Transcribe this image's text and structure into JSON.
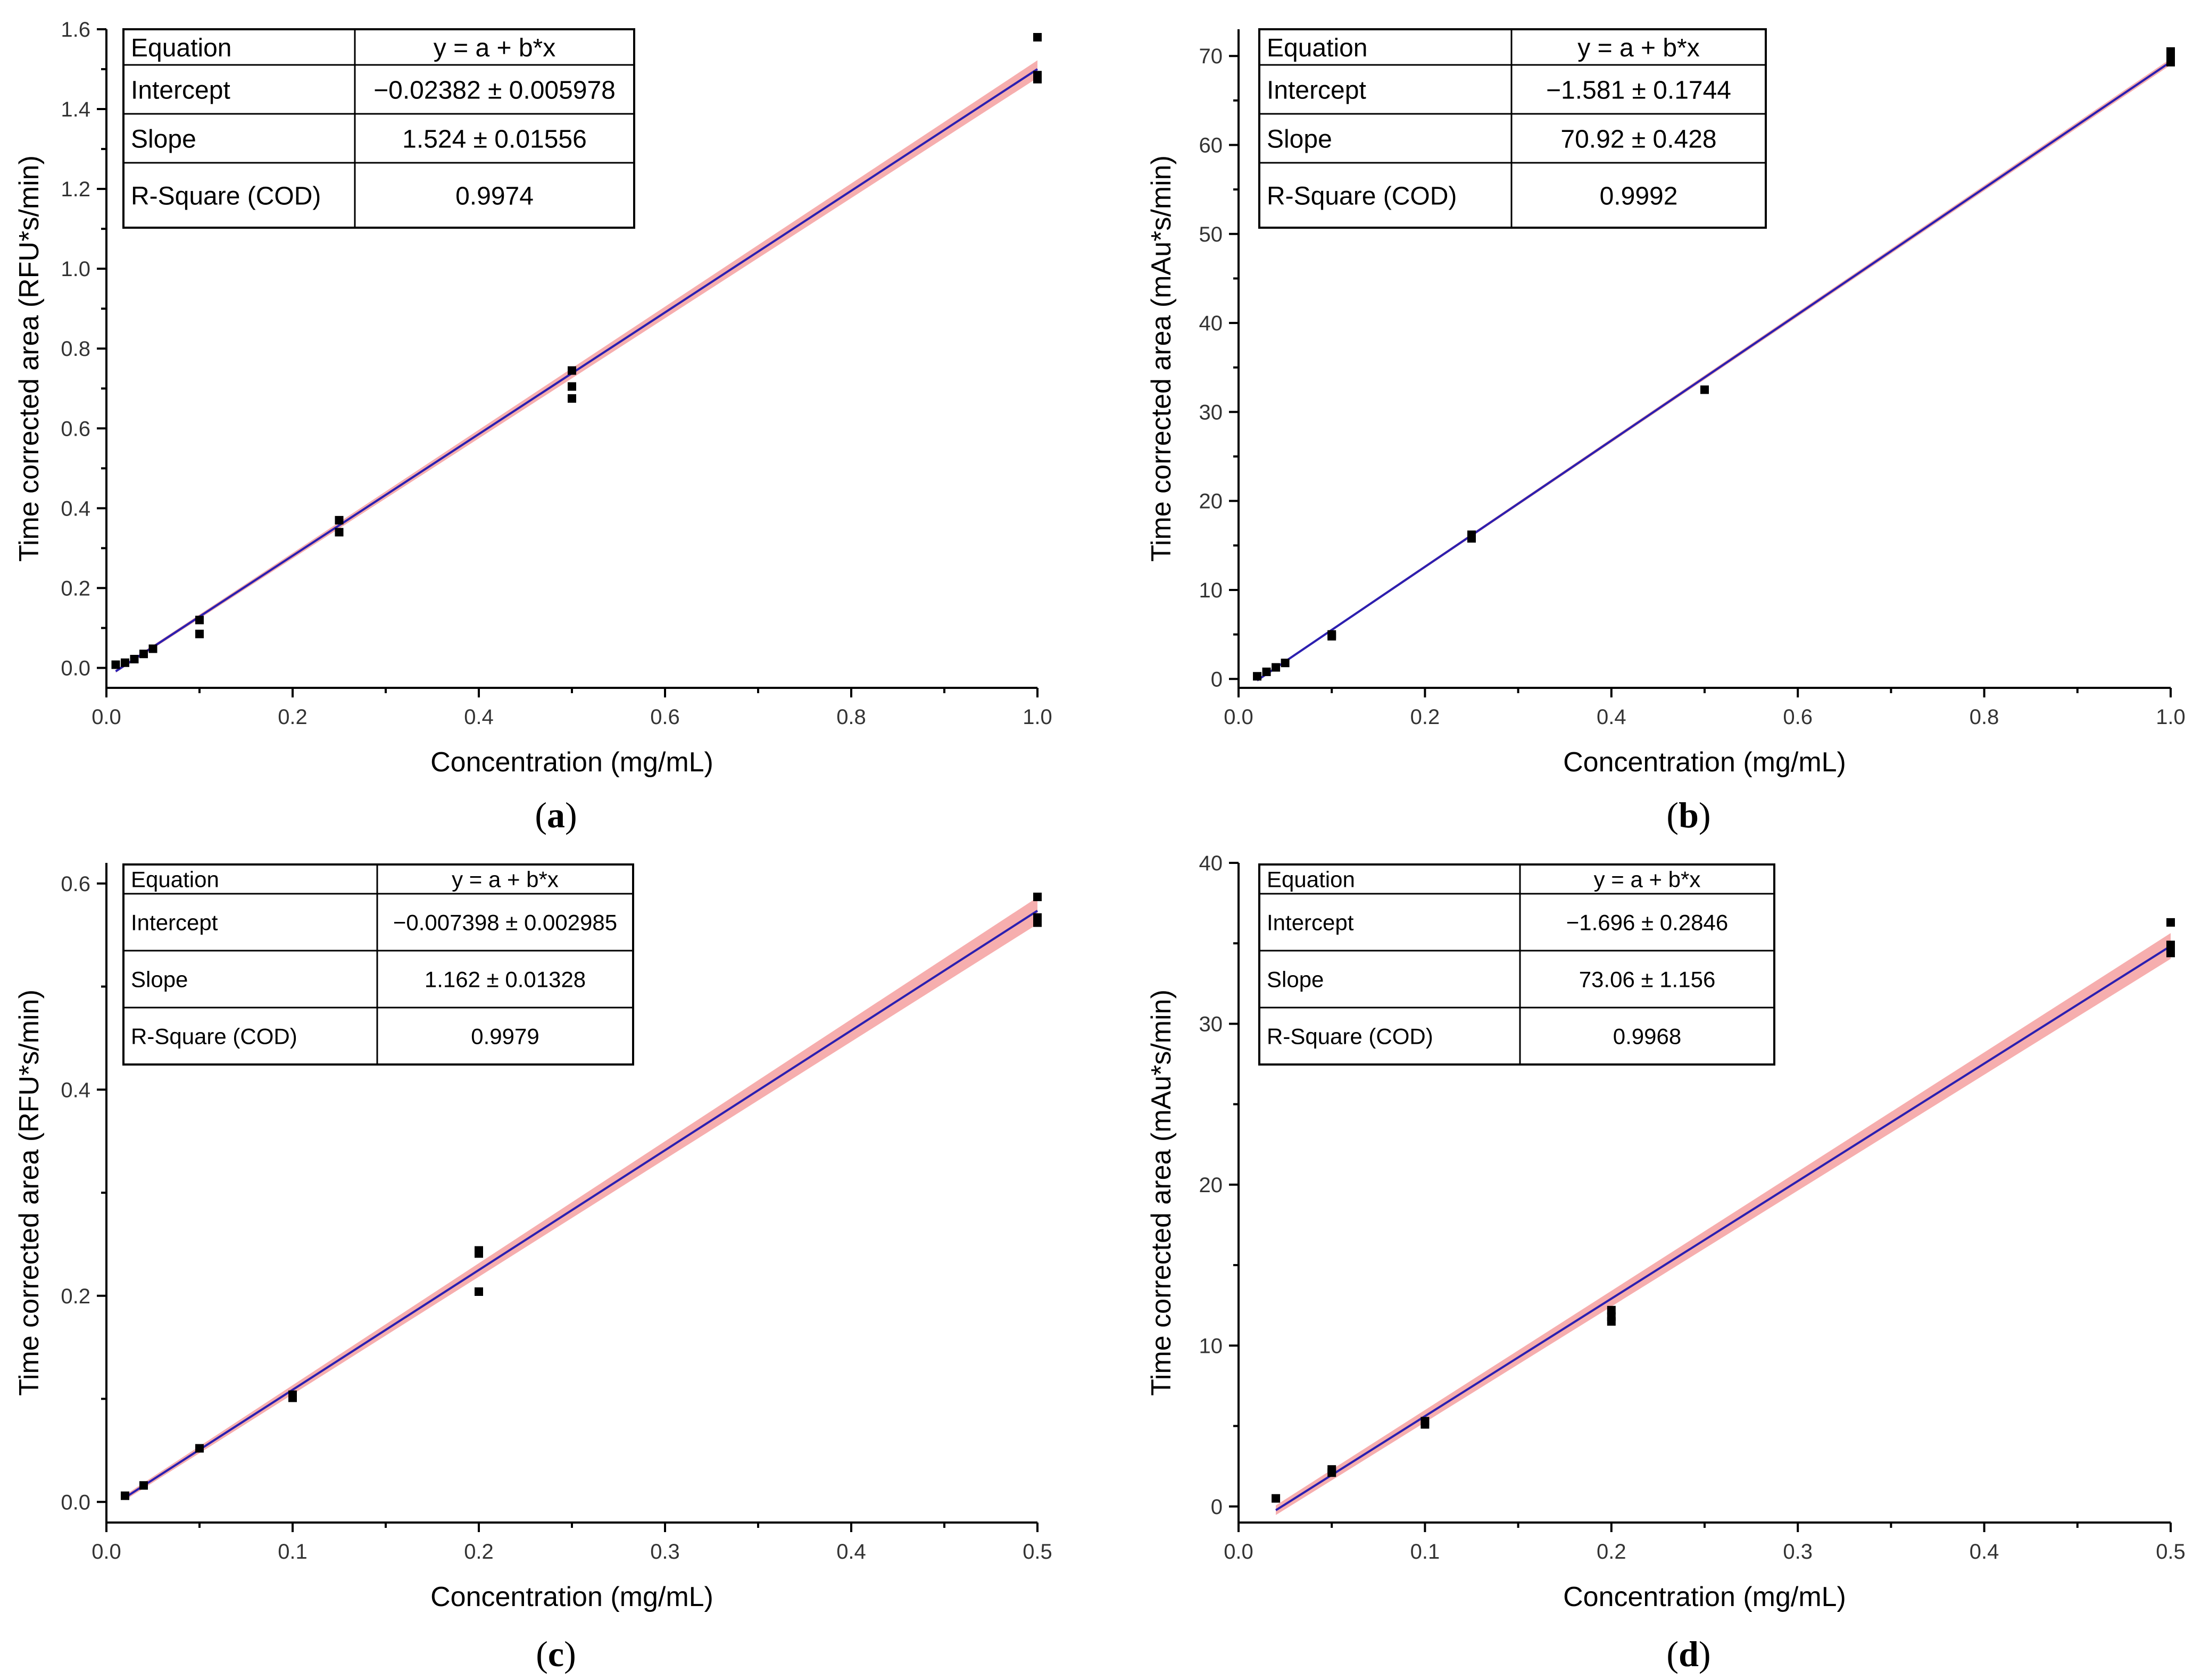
{
  "chart_data": [
    {
      "id": "a",
      "type": "scatter",
      "panel_label": "a",
      "xlabel": "Concentration (mg/mL)",
      "ylabel": "Time corrected area (RFU*s/min)",
      "xlim": [
        0.0,
        1.0
      ],
      "ylim": [
        -0.05,
        1.6
      ],
      "xticks": [
        0.0,
        0.2,
        0.4,
        0.6,
        0.8,
        1.0
      ],
      "xtick_labels": [
        "0.0",
        "0.2",
        "0.4",
        "0.6",
        "0.8",
        "1.0"
      ],
      "xminor": [
        0.1,
        0.3,
        0.5,
        0.7,
        0.9
      ],
      "yticks": [
        0.0,
        0.2,
        0.4,
        0.6,
        0.8,
        1.0,
        1.2,
        1.4,
        1.6
      ],
      "ytick_labels": [
        "0.0",
        "0.2",
        "0.4",
        "0.6",
        "0.8",
        "1.0",
        "1.2",
        "1.4",
        "1.6"
      ],
      "yminor": [
        0.1,
        0.3,
        0.5,
        0.7,
        0.9,
        1.1,
        1.3,
        1.5
      ],
      "fit": {
        "intercept": -0.02382,
        "slope": 1.524,
        "x_range": [
          0.01,
          1.0
        ],
        "ci": [
          0.0035,
          0.022
        ]
      },
      "points": [
        [
          0.01,
          0.008
        ],
        [
          0.02,
          0.013
        ],
        [
          0.03,
          0.022
        ],
        [
          0.04,
          0.035
        ],
        [
          0.05,
          0.048
        ],
        [
          0.1,
          0.12
        ],
        [
          0.1,
          0.085
        ],
        [
          0.25,
          0.37
        ],
        [
          0.25,
          0.34
        ],
        [
          0.5,
          0.745
        ],
        [
          0.5,
          0.705
        ],
        [
          0.5,
          0.675
        ],
        [
          1.0,
          1.58
        ],
        [
          1.0,
          1.485
        ],
        [
          1.0,
          1.475
        ]
      ],
      "table": {
        "rows": [
          {
            "label": "Equation",
            "value": "y = a + b*x"
          },
          {
            "label": "Intercept",
            "value": "−0.02382 ± 0.005978"
          },
          {
            "label": "Slope",
            "value": "1.524 ± 0.01556"
          },
          {
            "label": "R-Square (COD)",
            "value": "0.9974"
          }
        ]
      }
    },
    {
      "id": "b",
      "type": "scatter",
      "panel_label": "b",
      "xlabel": "Concentration (mg/mL)",
      "ylabel": "Time corrected area (mAu*s/min)",
      "xlim": [
        0.0,
        1.0
      ],
      "ylim": [
        -1,
        73
      ],
      "xticks": [
        0.0,
        0.2,
        0.4,
        0.6,
        0.8,
        1.0
      ],
      "xtick_labels": [
        "0.0",
        "0.2",
        "0.4",
        "0.6",
        "0.8",
        "1.0"
      ],
      "xminor": [
        0.1,
        0.3,
        0.5,
        0.7,
        0.9
      ],
      "yticks": [
        0,
        10,
        20,
        30,
        40,
        50,
        60,
        70
      ],
      "ytick_labels": [
        "0",
        "10",
        "20",
        "30",
        "40",
        "50",
        "60",
        "70"
      ],
      "yminor": [
        5,
        15,
        25,
        35,
        45,
        55,
        65
      ],
      "fit": {
        "intercept": -1.581,
        "slope": 70.92,
        "x_range": [
          0.02,
          1.0
        ],
        "ci": [
          0.12,
          0.35
        ]
      },
      "points": [
        [
          0.02,
          0.3
        ],
        [
          0.03,
          0.8
        ],
        [
          0.04,
          1.3
        ],
        [
          0.05,
          1.8
        ],
        [
          0.1,
          5.0
        ],
        [
          0.1,
          4.8
        ],
        [
          0.25,
          16.2
        ],
        [
          0.25,
          15.8
        ],
        [
          0.5,
          32.5
        ],
        [
          1.0,
          70.5
        ],
        [
          1.0,
          69.8
        ],
        [
          1.0,
          69.3
        ]
      ],
      "table": {
        "rows": [
          {
            "label": "Equation",
            "value": "y = a + b*x"
          },
          {
            "label": "Intercept",
            "value": "−1.581 ± 0.1744"
          },
          {
            "label": "Slope",
            "value": "70.92 ± 0.428"
          },
          {
            "label": "R-Square (COD)",
            "value": "0.9992"
          }
        ]
      }
    },
    {
      "id": "c",
      "type": "scatter",
      "panel_label": "c",
      "xlabel": "Concentration (mg/mL)",
      "ylabel": "Time corrected area (RFU*s/min)",
      "xlim": [
        0.0,
        0.5
      ],
      "ylim": [
        -0.02,
        0.62
      ],
      "xticks": [
        0.0,
        0.1,
        0.2,
        0.3,
        0.4,
        0.5
      ],
      "xtick_labels": [
        "0.0",
        "0.1",
        "0.2",
        "0.3",
        "0.4",
        "0.5"
      ],
      "xminor": [
        0.05,
        0.15,
        0.25,
        0.35,
        0.45
      ],
      "yticks": [
        0.0,
        0.2,
        0.4,
        0.6
      ],
      "ytick_labels": [
        "0.0",
        "0.2",
        "0.4",
        "0.6"
      ],
      "yminor": [
        0.1,
        0.3,
        0.5
      ],
      "fit": {
        "intercept": -0.007398,
        "slope": 1.162,
        "x_range": [
          0.01,
          0.5
        ],
        "ci": [
          0.0025,
          0.013
        ]
      },
      "points": [
        [
          0.01,
          0.006
        ],
        [
          0.02,
          0.016
        ],
        [
          0.05,
          0.052
        ],
        [
          0.1,
          0.104
        ],
        [
          0.1,
          0.101
        ],
        [
          0.2,
          0.244
        ],
        [
          0.2,
          0.241
        ],
        [
          0.2,
          0.204
        ],
        [
          0.5,
          0.587
        ],
        [
          0.5,
          0.567
        ],
        [
          0.5,
          0.562
        ]
      ],
      "table": {
        "rows": [
          {
            "label": "Equation",
            "value": "y = a + b*x"
          },
          {
            "label": "Intercept",
            "value": "−0.007398 ± 0.002985"
          },
          {
            "label": "Slope",
            "value": "1.162 ± 0.01328"
          },
          {
            "label": "R-Square (COD)",
            "value": "0.9979"
          }
        ]
      }
    },
    {
      "id": "d",
      "type": "scatter",
      "panel_label": "d",
      "xlabel": "Concentration (mg/mL)",
      "ylabel": "Time corrected area (mAu*s/min)",
      "xlim": [
        0.0,
        0.5
      ],
      "ylim": [
        -1,
        40
      ],
      "xticks": [
        0.0,
        0.1,
        0.2,
        0.3,
        0.4,
        0.5
      ],
      "xtick_labels": [
        "0.0",
        "0.1",
        "0.2",
        "0.3",
        "0.4",
        "0.5"
      ],
      "xminor": [
        0.05,
        0.15,
        0.25,
        0.35,
        0.45
      ],
      "yticks": [
        0,
        10,
        20,
        30,
        40
      ],
      "ytick_labels": [
        "0",
        "10",
        "20",
        "30",
        "40"
      ],
      "yminor": [
        5,
        15,
        25,
        35
      ],
      "fit": {
        "intercept": -1.696,
        "slope": 73.06,
        "x_range": [
          0.02,
          0.5
        ],
        "ci": [
          0.3,
          0.8
        ]
      },
      "points": [
        [
          0.02,
          0.5
        ],
        [
          0.05,
          2.3
        ],
        [
          0.05,
          2.1
        ],
        [
          0.1,
          5.3
        ],
        [
          0.1,
          5.1
        ],
        [
          0.2,
          12.2
        ],
        [
          0.2,
          11.8
        ],
        [
          0.2,
          11.5
        ],
        [
          0.5,
          36.3
        ],
        [
          0.5,
          34.9
        ],
        [
          0.5,
          34.4
        ]
      ],
      "table": {
        "rows": [
          {
            "label": "Equation",
            "value": "y = a + b*x"
          },
          {
            "label": "Intercept",
            "value": "−1.696 ± 0.2846"
          },
          {
            "label": "Slope",
            "value": "73.06 ± 1.156"
          },
          {
            "label": "R-Square (COD)",
            "value": "0.9968"
          }
        ]
      }
    }
  ]
}
